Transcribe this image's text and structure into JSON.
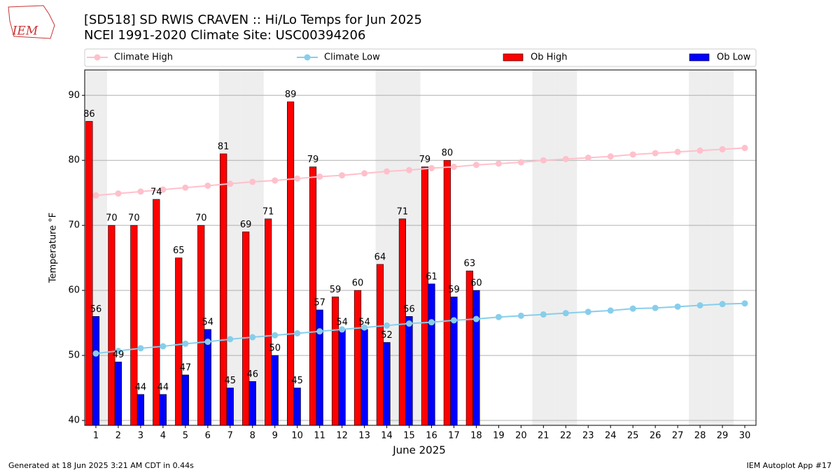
{
  "chart_data": {
    "type": "bar-line",
    "title": "[SD518] SD RWIS CRAVEN :: Hi/Lo Temps for Jun 2025",
    "subtitle": "NCEI 1991-2020 Climate Site: USC00394206",
    "xlabel": "June 2025",
    "ylabel": "Temperature °F",
    "x": [
      1,
      2,
      3,
      4,
      5,
      6,
      7,
      8,
      9,
      10,
      11,
      12,
      13,
      14,
      15,
      16,
      17,
      18,
      19,
      20,
      21,
      22,
      23,
      24,
      25,
      26,
      27,
      28,
      29,
      30
    ],
    "xlim": [
      0.5,
      30.5
    ],
    "xticks": [
      1,
      2,
      3,
      4,
      5,
      6,
      7,
      8,
      9,
      10,
      11,
      12,
      13,
      14,
      15,
      16,
      17,
      18,
      19,
      20,
      21,
      22,
      23,
      24,
      25,
      26,
      27,
      28,
      29,
      30
    ],
    "ylim": [
      39.25,
      93.9
    ],
    "yticks": [
      40,
      50,
      60,
      70,
      80,
      90
    ],
    "grid": true,
    "legend": "top",
    "shaded_days": [
      1,
      7,
      8,
      14,
      15,
      21,
      22,
      28,
      29
    ],
    "shade_color": "#eeeeee",
    "series": [
      {
        "name": "Climate High",
        "kind": "line",
        "color": "#ffc0cb",
        "values": [
          74.6,
          74.9,
          75.2,
          75.5,
          75.8,
          76.1,
          76.4,
          76.7,
          76.9,
          77.2,
          77.5,
          77.7,
          78.0,
          78.3,
          78.5,
          78.8,
          79.0,
          79.3,
          79.5,
          79.7,
          80.0,
          80.2,
          80.4,
          80.6,
          80.9,
          81.1,
          81.3,
          81.5,
          81.7,
          81.9
        ]
      },
      {
        "name": "Climate Low",
        "kind": "line",
        "color": "#87ceeb",
        "values": [
          50.3,
          50.7,
          51.1,
          51.4,
          51.8,
          52.1,
          52.5,
          52.8,
          53.1,
          53.4,
          53.7,
          54.0,
          54.3,
          54.6,
          54.9,
          55.1,
          55.4,
          55.6,
          55.9,
          56.1,
          56.3,
          56.5,
          56.7,
          56.9,
          57.2,
          57.3,
          57.5,
          57.7,
          57.9,
          58.0
        ]
      },
      {
        "name": "Ob High",
        "kind": "bar",
        "color": "#ff0000",
        "values": [
          86,
          70,
          70,
          74,
          65,
          70,
          81,
          69,
          71,
          89,
          79,
          59,
          60,
          64,
          71,
          79,
          80,
          63,
          null,
          null,
          null,
          null,
          null,
          null,
          null,
          null,
          null,
          null,
          null,
          null
        ]
      },
      {
        "name": "Ob Low",
        "kind": "bar",
        "color": "#0000ff",
        "values": [
          56,
          49,
          44,
          44,
          47,
          54,
          45,
          46,
          50,
          45,
          57,
          54,
          54,
          52,
          56,
          61,
          59,
          60,
          null,
          null,
          null,
          null,
          null,
          null,
          null,
          null,
          null,
          null,
          null,
          null
        ]
      }
    ]
  },
  "logo_text": "IEM",
  "footer_left": "Generated at 18 Jun 2025 3:21 AM CDT in 0.44s",
  "footer_right": "IEM Autoplot App #17"
}
